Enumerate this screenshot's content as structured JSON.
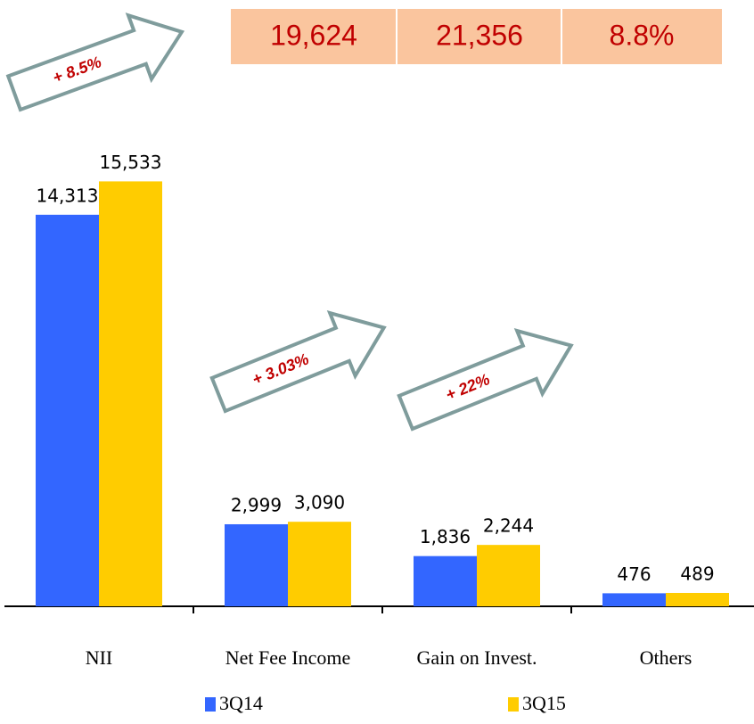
{
  "chart_data": {
    "type": "bar",
    "categories": [
      "NII",
      "Net Fee Income",
      "Gain on Invest.",
      "Others"
    ],
    "series": [
      {
        "name": "3Q14",
        "color": "#3366ff",
        "values": [
          14313,
          2999,
          1836,
          476
        ],
        "value_labels": [
          "14,313",
          "2,999",
          "1,836",
          "476"
        ]
      },
      {
        "name": "3Q15",
        "color": "#ffcc00",
        "values": [
          15533,
          3090,
          2244,
          489
        ],
        "value_labels": [
          "15,533",
          "3,090",
          "2,244",
          "489"
        ]
      }
    ],
    "ylim": [
      0,
      22000
    ],
    "annotations": [
      "+ 8.5%",
      "+ 3.03%",
      "+ 22%"
    ],
    "summary": [
      "19,624",
      "21,356",
      "8.8%"
    ]
  }
}
